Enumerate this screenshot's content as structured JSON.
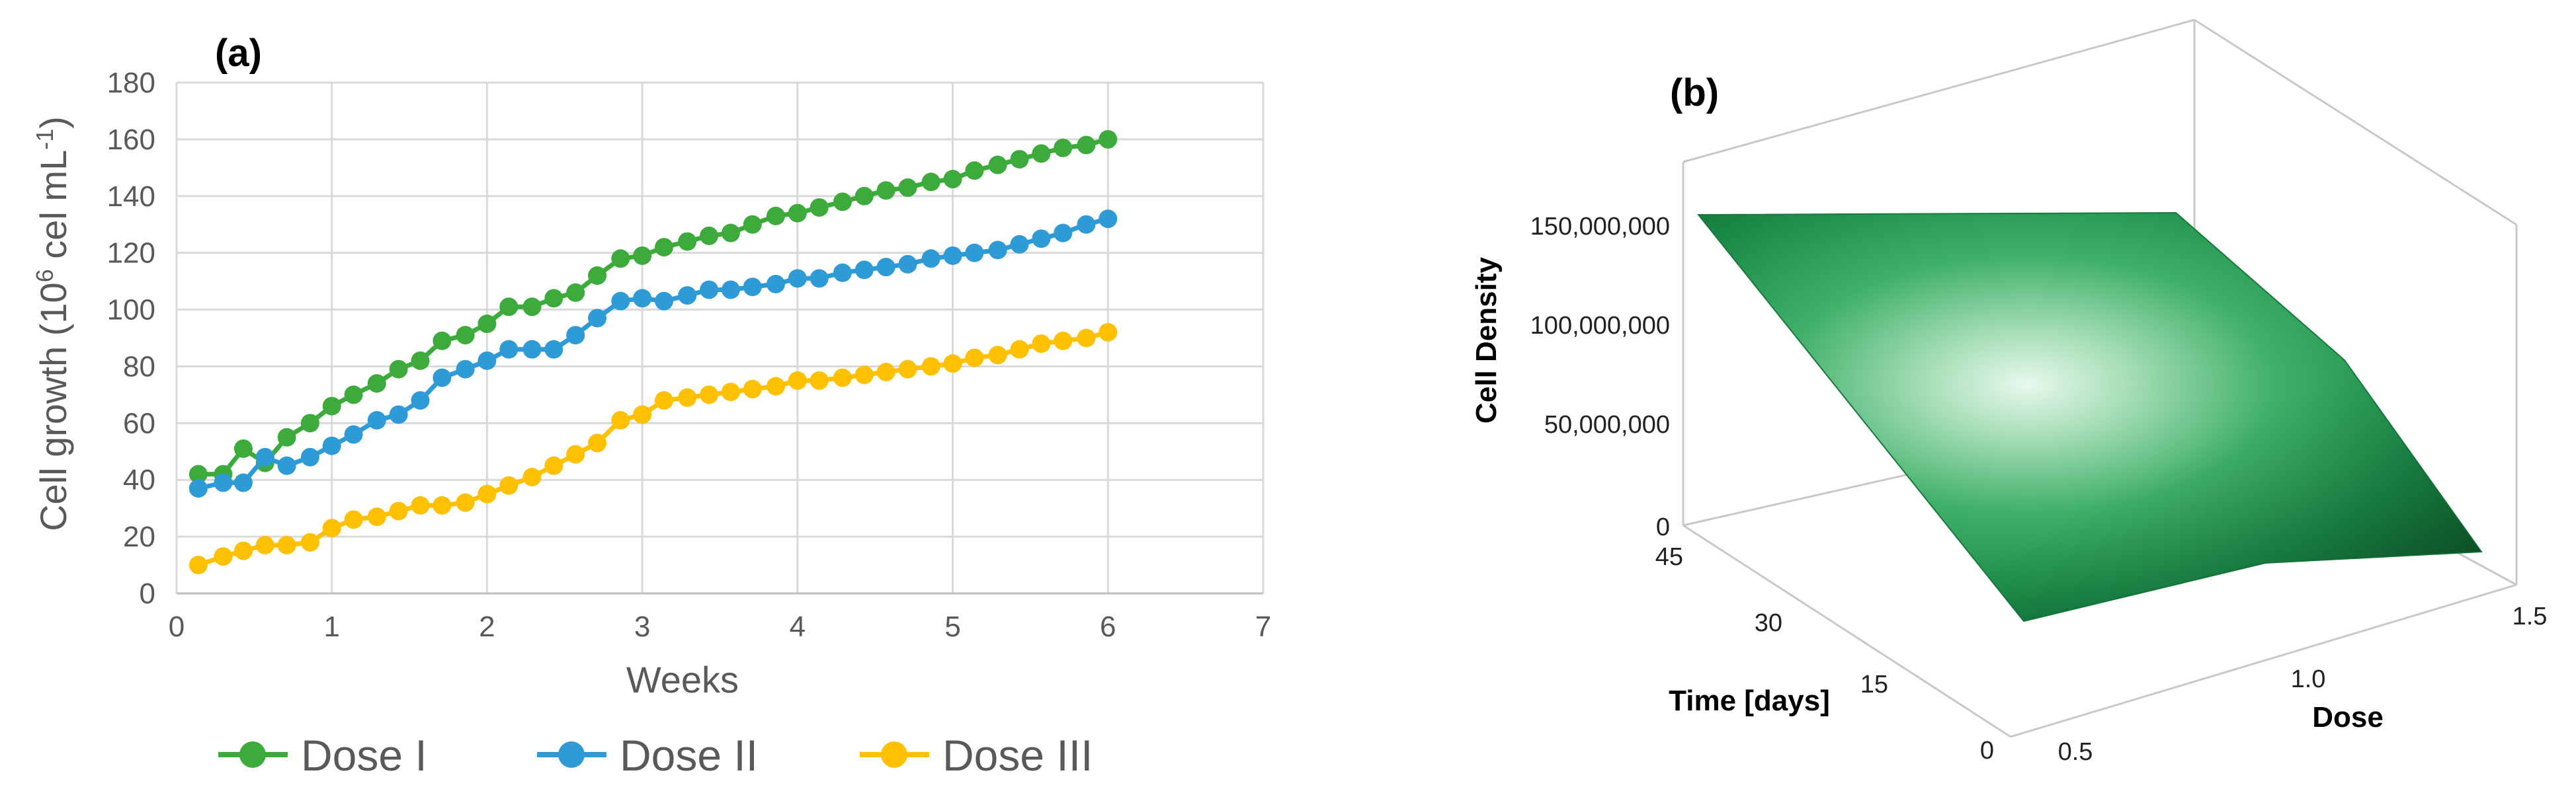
{
  "panels": {
    "a_label": "(a)",
    "b_label": "(b)"
  },
  "chart_data": [
    {
      "type": "line",
      "xlabel": "Weeks",
      "ylabel": "Cell growth (10^6 cel mL^-1)",
      "ylabel_parts": {
        "main": "Cell growth (10",
        "exp1": "6",
        "mid": " cel mL",
        "exp2": "-1",
        "end": ")"
      },
      "xlim": [
        0,
        7
      ],
      "ylim": [
        0,
        180
      ],
      "xticks": [
        "0",
        "1",
        "2",
        "3",
        "4",
        "5",
        "6",
        "7"
      ],
      "yticks": [
        "0",
        "20",
        "40",
        "60",
        "80",
        "100",
        "120",
        "140",
        "160",
        "180"
      ],
      "grid": true,
      "legend_position": "bottom",
      "series": [
        {
          "name": "Dose I",
          "color": "#3CAB3C",
          "x": [
            0.14,
            0.3,
            0.43,
            0.57,
            0.71,
            0.86,
            1.0,
            1.14,
            1.29,
            1.43,
            1.57,
            1.71,
            1.86,
            2.0,
            2.14,
            2.29,
            2.43,
            2.57,
            2.71,
            2.86,
            3.0,
            3.14,
            3.29,
            3.43,
            3.57,
            3.71,
            3.86,
            4.0,
            4.14,
            4.29,
            4.43,
            4.57,
            4.71,
            4.86,
            5.0,
            5.14,
            5.29,
            5.43,
            5.57,
            5.71,
            5.86,
            6.0
          ],
          "y": [
            42,
            42,
            51,
            46,
            55,
            60,
            66,
            70,
            74,
            79,
            82,
            89,
            91,
            95,
            101,
            101,
            104,
            106,
            112,
            118,
            119,
            122,
            124,
            126,
            127,
            130,
            133,
            134,
            136,
            138,
            140,
            142,
            143,
            145,
            146,
            149,
            151,
            153,
            155,
            157,
            158,
            160
          ]
        },
        {
          "name": "Dose II",
          "color": "#2E9BD6",
          "x": [
            0.14,
            0.3,
            0.43,
            0.57,
            0.71,
            0.86,
            1.0,
            1.14,
            1.29,
            1.43,
            1.57,
            1.71,
            1.86,
            2.0,
            2.14,
            2.29,
            2.43,
            2.57,
            2.71,
            2.86,
            3.0,
            3.14,
            3.29,
            3.43,
            3.57,
            3.71,
            3.86,
            4.0,
            4.14,
            4.29,
            4.43,
            4.57,
            4.71,
            4.86,
            5.0,
            5.14,
            5.29,
            5.43,
            5.57,
            5.71,
            5.86,
            6.0
          ],
          "y": [
            37,
            39,
            39,
            48,
            45,
            48,
            52,
            56,
            61,
            63,
            68,
            76,
            79,
            82,
            86,
            86,
            86,
            91,
            97,
            103,
            104,
            103,
            105,
            107,
            107,
            108,
            109,
            111,
            111,
            113,
            114,
            115,
            116,
            118,
            119,
            120,
            121,
            123,
            125,
            127,
            130,
            132
          ]
        },
        {
          "name": "Dose III",
          "color": "#FFC000",
          "x": [
            0.14,
            0.3,
            0.43,
            0.57,
            0.71,
            0.86,
            1.0,
            1.14,
            1.29,
            1.43,
            1.57,
            1.71,
            1.86,
            2.0,
            2.14,
            2.29,
            2.43,
            2.57,
            2.71,
            2.86,
            3.0,
            3.14,
            3.29,
            3.43,
            3.57,
            3.71,
            3.86,
            4.0,
            4.14,
            4.29,
            4.43,
            4.57,
            4.71,
            4.86,
            5.0,
            5.14,
            5.29,
            5.43,
            5.57,
            5.71,
            5.86,
            6.0
          ],
          "y": [
            10,
            13,
            15,
            17,
            17,
            18,
            23,
            26,
            27,
            29,
            31,
            31,
            32,
            35,
            38,
            41,
            45,
            49,
            53,
            61,
            63,
            68,
            69,
            70,
            71,
            72,
            73,
            75,
            75,
            76,
            77,
            78,
            79,
            80,
            81,
            83,
            84,
            86,
            88,
            89,
            90,
            92
          ]
        }
      ]
    },
    {
      "type": "surface",
      "zlabel": "Cell Density",
      "xlabel": "Dose",
      "ylabel": "Time [days]",
      "zticks": [
        "0",
        "50,000,000",
        "100,000,000",
        "150,000,000"
      ],
      "time_ticks": [
        "0",
        "15",
        "30",
        "45"
      ],
      "dose_ticks": [
        "0.5",
        "1.0",
        "1.5"
      ],
      "surface_color": "#1F9A4E",
      "dose_values": [
        0.5,
        1.0,
        1.5
      ],
      "time_values": [
        0,
        45
      ],
      "density": [
        [
          10000000,
          5000000,
          1000000
        ],
        [
          150000000,
          155000000,
          160000000
        ]
      ]
    }
  ]
}
